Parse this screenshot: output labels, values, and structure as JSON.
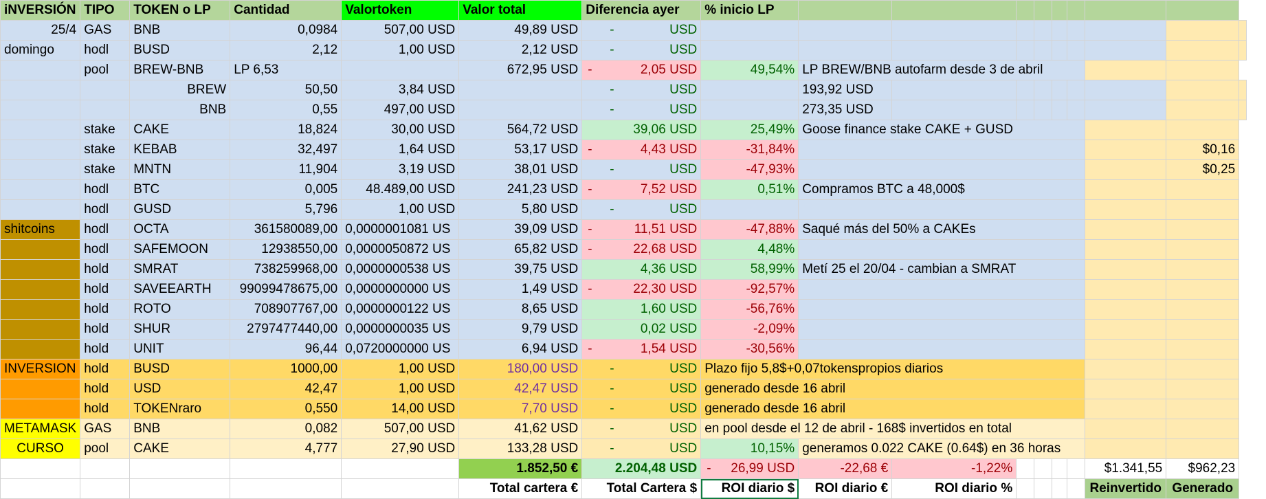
{
  "headers": [
    "iNVERSIÓN",
    "TIPO",
    "TOKEN o LP",
    "Cantidad",
    "Valortoken",
    "Valor total",
    "Diferencia ayer",
    "% inicio LP"
  ],
  "rows": [
    {
      "inv": "25/4",
      "tipo": "GAS",
      "token": "BNB",
      "cantidad": "0,0984",
      "valortoken": "507,00 USD",
      "valortotal": "49,89 USD",
      "dif": "USD",
      "pct": "",
      "note": ""
    },
    {
      "inv": "domingo",
      "tipo": "hodl",
      "token": "BUSD",
      "cantidad": "2,12",
      "valortoken": "1,00 USD",
      "valortotal": "2,12 USD",
      "dif": "USD",
      "pct": "",
      "note": ""
    },
    {
      "inv": "",
      "tipo": "pool",
      "token": "BREW-BNB",
      "cantidad": "LP 6,53",
      "valortoken": "",
      "valortotal": "672,95 USD",
      "dif": "2,05 USD",
      "pct": "49,54%",
      "note": "LP BREW/BNB autofarm desde 3 de abril"
    },
    {
      "inv": "",
      "tipo": "",
      "token": "BREW",
      "cantidad": "50,50",
      "valortoken": "3,84 USD",
      "valortotal": "",
      "dif": "USD",
      "pct": "",
      "note": "193,92 USD"
    },
    {
      "inv": "",
      "tipo": "",
      "token": "BNB",
      "cantidad": "0,55",
      "valortoken": "497,00 USD",
      "valortotal": "",
      "dif": "USD",
      "pct": "",
      "note": "273,35 USD"
    },
    {
      "inv": "",
      "tipo": "stake",
      "token": "CAKE",
      "cantidad": "18,824",
      "valortoken": "30,00 USD",
      "valortotal": "564,72 USD",
      "dif": "39,06 USD",
      "pct": "25,49%",
      "note": "Goose finance stake CAKE + GUSD"
    },
    {
      "inv": "",
      "tipo": "stake",
      "token": "KEBAB",
      "cantidad": "32,497",
      "valortoken": "1,64 USD",
      "valortotal": "53,17 USD",
      "dif": "4,43 USD",
      "pct": "-31,84%",
      "note": "",
      "extra": "$0,16"
    },
    {
      "inv": "",
      "tipo": "stake",
      "token": "MNTN",
      "cantidad": "11,904",
      "valortoken": "3,19 USD",
      "valortotal": "38,01 USD",
      "dif": "USD",
      "pct": "-47,93%",
      "note": "",
      "extra": "$0,25"
    },
    {
      "inv": "",
      "tipo": "hodl",
      "token": "BTC",
      "cantidad": "0,005",
      "valortoken": "48.489,00 USD",
      "valortotal": "241,23 USD",
      "dif": "7,52 USD",
      "pct": "0,51%",
      "note": "Compramos BTC a 48,000$"
    },
    {
      "inv": "",
      "tipo": "hodl",
      "token": "GUSD",
      "cantidad": "5,796",
      "valortoken": "1,00 USD",
      "valortotal": "5,80 USD",
      "dif": "USD",
      "pct": "",
      "note": ""
    },
    {
      "inv": "shitcoins",
      "tipo": "hodl",
      "token": "OCTA",
      "cantidad": "361580089,00",
      "valortoken": "0,0000001081 US",
      "valortotal": "39,09 USD",
      "dif": "11,51 USD",
      "pct": "-47,88%",
      "note": "Saqué más del 50% a CAKEs"
    },
    {
      "inv": "",
      "tipo": "hodl",
      "token": "SAFEMOON",
      "cantidad": "12938550,00",
      "valortoken": "0,0000050872 US",
      "valortotal": "65,82 USD",
      "dif": "22,68 USD",
      "pct": "4,48%",
      "note": ""
    },
    {
      "inv": "",
      "tipo": "hold",
      "token": "SMRAT",
      "cantidad": "738259968,00",
      "valortoken": "0,0000000538 US",
      "valortotal": "39,75 USD",
      "dif": "4,36 USD",
      "pct": "58,99%",
      "note": "Metí 25 el 20/04 - cambian a SMRAT"
    },
    {
      "inv": "",
      "tipo": "hold",
      "token": "SAVEEARTH",
      "cantidad": "99099478675,00",
      "valortoken": "0,0000000000 US",
      "valortotal": "1,49 USD",
      "dif": "22,30 USD",
      "pct": "-92,57%",
      "note": ""
    },
    {
      "inv": "",
      "tipo": "hold",
      "token": "ROTO",
      "cantidad": "708907767,00",
      "valortoken": "0,0000000122 US",
      "valortotal": "8,65 USD",
      "dif": "1,60 USD",
      "pct": "-56,76%",
      "note": ""
    },
    {
      "inv": "",
      "tipo": "hold",
      "token": "SHUR",
      "cantidad": "2797477440,00",
      "valortoken": "0,0000000035 US",
      "valortotal": "9,79 USD",
      "dif": "0,02 USD",
      "pct": "-2,09%",
      "note": ""
    },
    {
      "inv": "",
      "tipo": "hold",
      "token": "UNIT",
      "cantidad": "96,44",
      "valortoken": "0,0720000000 US",
      "valortotal": "6,94 USD",
      "dif": "1,54 USD",
      "pct": "-30,56%",
      "note": ""
    },
    {
      "inv": "INVERSION",
      "tipo": "hold",
      "token": "BUSD",
      "cantidad": "1000,00",
      "valortoken": "1,00 USD",
      "valortotal": "180,00 USD",
      "dif": "USD",
      "pct": "",
      "note": "Plazo fijo 5,8$+0,07tokenspropios diarios"
    },
    {
      "inv": "",
      "tipo": "hold",
      "token": "USD",
      "cantidad": "42,47",
      "valortoken": "1,00 USD",
      "valortotal": "42,47 USD",
      "dif": "USD",
      "pct": "",
      "note": "generado desde 16 abril"
    },
    {
      "inv": "",
      "tipo": "hold",
      "token": "TOKENraro",
      "cantidad": "0,550",
      "valortoken": "14,00 USD",
      "valortotal": "7,70 USD",
      "dif": "USD",
      "pct": "",
      "note": "generado desde 16 abril"
    },
    {
      "inv": "METAMASK",
      "tipo": "GAS",
      "token": "BNB",
      "cantidad": "0,082",
      "valortoken": "507,00 USD",
      "valortotal": "41,62 USD",
      "dif": "USD",
      "pct": "",
      "note": "en pool desde el 12 de abril - 168$ invertidos en total"
    },
    {
      "inv": "CURSO",
      "tipo": "pool",
      "token": "CAKE",
      "cantidad": "4,777",
      "valortoken": "27,90 USD",
      "valortotal": "133,28 USD",
      "dif": "USD",
      "pct": "10,15%",
      "note": "generamos 0.022 CAKE (0.64$) en 36 horas"
    }
  ],
  "dash": "-",
  "totals": {
    "eur": "1.852,50 €",
    "usd": "2.204,48 USD",
    "roi_usd": "26,99 USD",
    "roi_eur": "-22,68 €",
    "roi_pct": "-1,22%",
    "reinvertido": "$1.341,55",
    "generado": "$962,23"
  },
  "footer": {
    "total_eur": "Total cartera €",
    "total_usd": "Total Cartera $",
    "roi_usd": "ROI diario $",
    "roi_eur": "ROI diario €",
    "roi_pct": "ROI diario %",
    "reinvertido": "Reinvertido",
    "generado": "Generado"
  }
}
